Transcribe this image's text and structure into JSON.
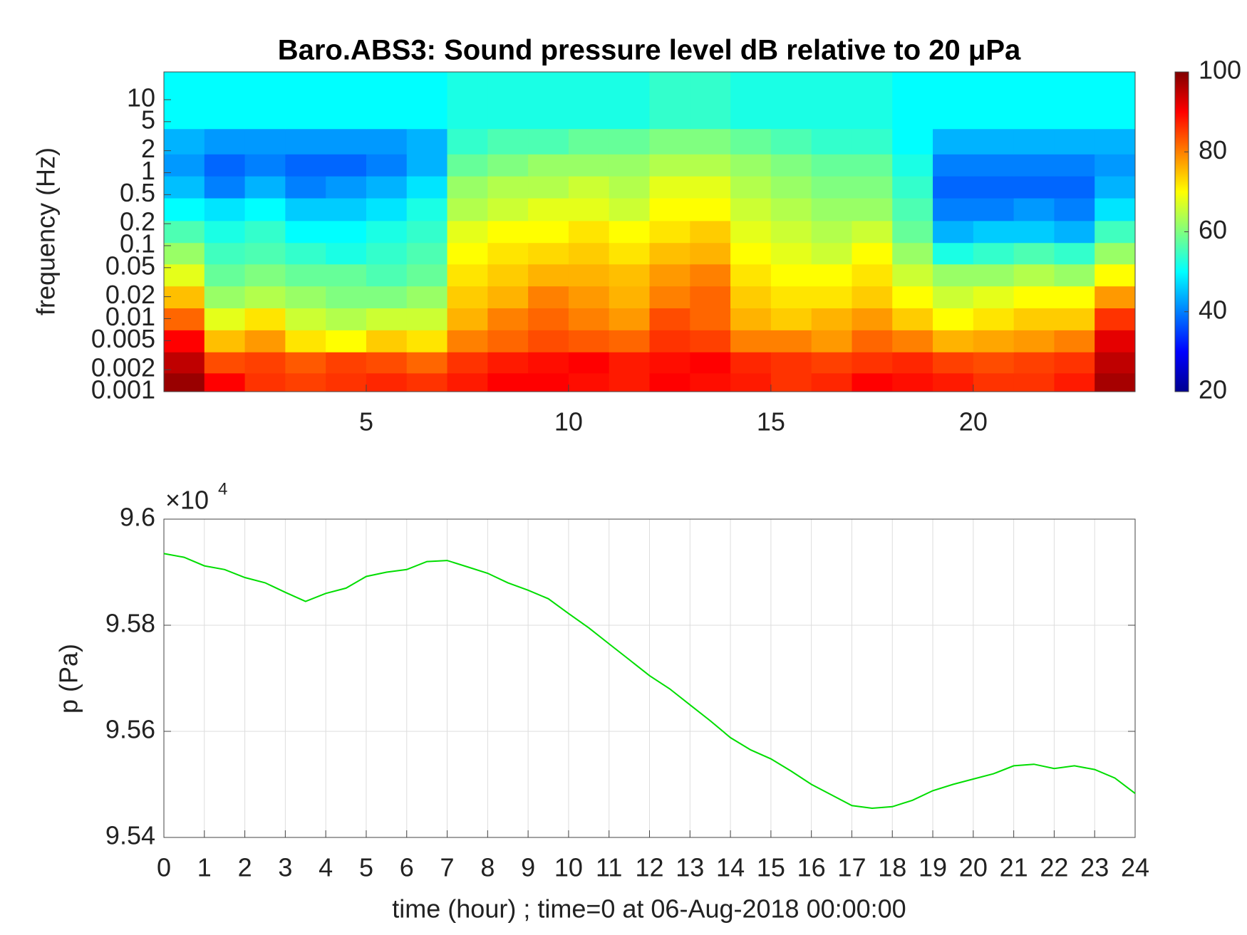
{
  "chart_data": [
    {
      "type": "heatmap",
      "title": "Baro.ABS3: Sound pressure level dB relative to 20 μPa",
      "ylabel": "frequency (Hz)",
      "colormap": "jet",
      "log_y": true,
      "xlim": [
        0,
        24
      ],
      "xticks": [
        5,
        10,
        15,
        20
      ],
      "ylim": [
        0.001,
        24
      ],
      "yticks": [
        0.001,
        0.002,
        0.005,
        0.01,
        0.02,
        0.05,
        0.1,
        0.2,
        0.5,
        1,
        2,
        5,
        10
      ],
      "x_edges": [
        0,
        1,
        2,
        3,
        4,
        5,
        6,
        7,
        8,
        9,
        10,
        11,
        12,
        13,
        14,
        15,
        16,
        17,
        18,
        19,
        20,
        21,
        22,
        23,
        24
      ],
      "y_edges": [
        0.001,
        0.0018,
        0.0035,
        0.007,
        0.014,
        0.028,
        0.056,
        0.11,
        0.22,
        0.45,
        0.9,
        1.8,
        4,
        24
      ],
      "z": [
        [
          98,
          90,
          86,
          85,
          86,
          87,
          86,
          88,
          90,
          90,
          89,
          88,
          90,
          89,
          88,
          86,
          87,
          90,
          89,
          88,
          86,
          86,
          88,
          97
        ],
        [
          95,
          84,
          85,
          83,
          85,
          84,
          82,
          86,
          88,
          89,
          90,
          88,
          89,
          90,
          87,
          86,
          85,
          86,
          87,
          85,
          84,
          85,
          86,
          95
        ],
        [
          90,
          75,
          78,
          72,
          70,
          74,
          72,
          80,
          82,
          84,
          83,
          82,
          86,
          85,
          80,
          80,
          78,
          82,
          80,
          76,
          77,
          78,
          80,
          92
        ],
        [
          82,
          68,
          72,
          66,
          64,
          66,
          66,
          76,
          80,
          82,
          80,
          78,
          84,
          82,
          76,
          74,
          76,
          78,
          74,
          70,
          72,
          74,
          74,
          86
        ],
        [
          75,
          62,
          64,
          62,
          60,
          60,
          62,
          74,
          76,
          80,
          78,
          76,
          80,
          82,
          74,
          72,
          72,
          74,
          70,
          66,
          68,
          70,
          70,
          78
        ],
        [
          68,
          58,
          60,
          58,
          58,
          56,
          58,
          72,
          74,
          76,
          76,
          75,
          78,
          80,
          72,
          70,
          70,
          72,
          66,
          62,
          62,
          64,
          62,
          70
        ],
        [
          62,
          55,
          56,
          54,
          52,
          54,
          56,
          70,
          72,
          73,
          74,
          72,
          75,
          76,
          70,
          68,
          66,
          70,
          62,
          52,
          54,
          56,
          54,
          62
        ],
        [
          56,
          52,
          54,
          50,
          50,
          52,
          54,
          68,
          70,
          70,
          72,
          70,
          72,
          74,
          68,
          66,
          64,
          66,
          58,
          44,
          46,
          46,
          44,
          55
        ],
        [
          50,
          48,
          50,
          46,
          46,
          48,
          52,
          64,
          66,
          68,
          68,
          66,
          70,
          70,
          66,
          64,
          62,
          62,
          56,
          40,
          40,
          42,
          40,
          48
        ],
        [
          45,
          40,
          44,
          40,
          42,
          44,
          48,
          62,
          64,
          64,
          66,
          64,
          68,
          68,
          64,
          62,
          60,
          60,
          54,
          38,
          38,
          38,
          38,
          44
        ],
        [
          42,
          38,
          40,
          38,
          38,
          40,
          44,
          58,
          60,
          62,
          62,
          62,
          64,
          64,
          62,
          60,
          58,
          58,
          52,
          40,
          40,
          40,
          40,
          42
        ],
        [
          44,
          42,
          42,
          42,
          42,
          42,
          44,
          54,
          56,
          56,
          58,
          58,
          60,
          60,
          58,
          56,
          54,
          54,
          50,
          44,
          44,
          44,
          44,
          44
        ],
        [
          50,
          50,
          50,
          50,
          50,
          50,
          50,
          52,
          52,
          52,
          52,
          52,
          54,
          54,
          52,
          52,
          52,
          52,
          50,
          50,
          50,
          50,
          50,
          50
        ]
      ],
      "colorbar": {
        "clim": [
          20,
          100
        ],
        "ticks": [
          20,
          40,
          60,
          80,
          100
        ]
      }
    },
    {
      "type": "line",
      "xlabel": "time (hour) ; time=0 at 06-Aug-2018 00:00:00",
      "ylabel": "p (Pa)",
      "exponent_base": "×10",
      "exponent": "4",
      "grid": true,
      "xlim": [
        0,
        24
      ],
      "xticks": [
        0,
        1,
        2,
        3,
        4,
        5,
        6,
        7,
        8,
        9,
        10,
        11,
        12,
        13,
        14,
        15,
        16,
        17,
        18,
        19,
        20,
        21,
        22,
        23,
        24
      ],
      "ylim": [
        95400,
        96000
      ],
      "yticks": [
        {
          "value": 95400,
          "label": "9.54"
        },
        {
          "value": 95600,
          "label": "9.56"
        },
        {
          "value": 95800,
          "label": "9.58"
        },
        {
          "value": 96000,
          "label": "9.6"
        }
      ],
      "x": [
        0,
        0.5,
        1,
        1.5,
        2,
        2.5,
        3,
        3.5,
        4,
        4.5,
        5,
        5.5,
        6,
        6.5,
        7,
        7.5,
        8,
        8.5,
        9,
        9.5,
        10,
        10.5,
        11,
        11.5,
        12,
        12.5,
        13,
        13.5,
        14,
        14.5,
        15,
        15.5,
        16,
        16.5,
        17,
        17.5,
        18,
        18.5,
        19,
        19.5,
        20,
        20.5,
        21,
        21.5,
        22,
        22.5,
        23,
        23.5,
        24
      ],
      "series": [
        {
          "color": "#00dd00",
          "values": [
            95935,
            95928,
            95912,
            95905,
            95890,
            95880,
            95862,
            95845,
            95860,
            95870,
            95892,
            95900,
            95905,
            95920,
            95922,
            95910,
            95898,
            95880,
            95866,
            95850,
            95822,
            95795,
            95765,
            95735,
            95705,
            95680,
            95650,
            95620,
            95588,
            95565,
            95548,
            95525,
            95500,
            95480,
            95460,
            95455,
            95458,
            95470,
            95488,
            95500,
            95510,
            95520,
            95535,
            95538,
            95530,
            95535,
            95528,
            95512,
            95483
          ]
        }
      ]
    }
  ]
}
